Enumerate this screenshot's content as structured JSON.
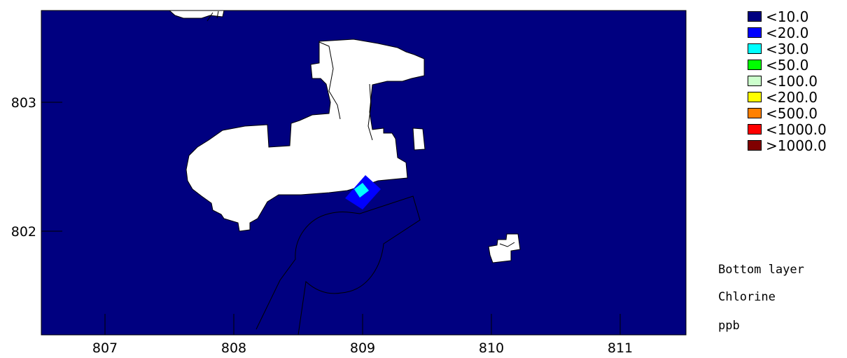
{
  "map": {
    "x_ticks": [
      "807",
      "808",
      "809",
      "810",
      "811"
    ],
    "y_ticks": [
      "803",
      "802"
    ],
    "colors": {
      "background": "#000080",
      "land": "#ffffff",
      "coast": "#000000"
    }
  },
  "legend": [
    {
      "label": "<10.0",
      "color": "#000080"
    },
    {
      "label": "<20.0",
      "color": "#0000ff"
    },
    {
      "label": "<30.0",
      "color": "#00ffff"
    },
    {
      "label": "<50.0",
      "color": "#00ff00"
    },
    {
      "label": "<100.0",
      "color": "#ccffcc"
    },
    {
      "label": "<200.0",
      "color": "#ffff00"
    },
    {
      "label": "<500.0",
      "color": "#ff8000"
    },
    {
      "label": "<1000.0",
      "color": "#ff0000"
    },
    {
      "label": ">1000.0",
      "color": "#800000"
    }
  ],
  "info": {
    "layer": "Bottom layer",
    "pollutant": "Chlorine",
    "unit": "ppb"
  }
}
